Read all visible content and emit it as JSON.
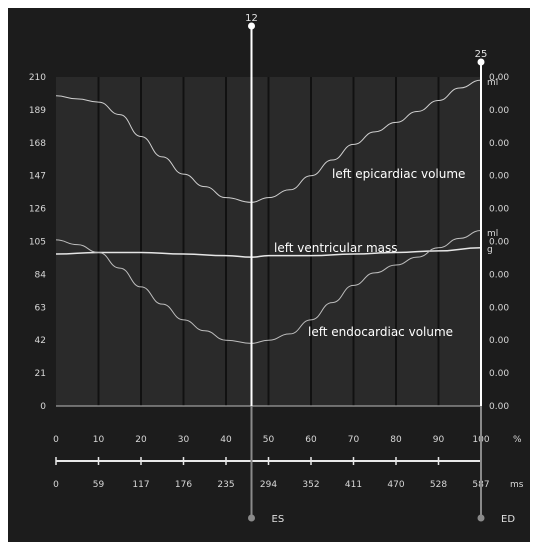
{
  "chart_data": {
    "type": "line",
    "left_axis": {
      "ticks": [
        0,
        21,
        42,
        63,
        84,
        105,
        126,
        147,
        168,
        189,
        210
      ],
      "range": [
        0,
        210
      ]
    },
    "right_axis": {
      "ticks": [
        "0.00",
        "0.00",
        "0.00",
        "0.00",
        "0.00",
        "0.00",
        "0.00",
        "0.00",
        "0.00",
        "0.00",
        "0.00"
      ]
    },
    "percent_axis": {
      "ticks": [
        0,
        10,
        20,
        30,
        40,
        50,
        60,
        70,
        80,
        90,
        100
      ],
      "unit": "%"
    },
    "ms_axis": {
      "ticks": [
        0,
        59,
        117,
        176,
        235,
        294,
        352,
        411,
        470,
        528,
        587
      ],
      "unit": "ms"
    },
    "right_units": {
      "top": "ml",
      "mid_ml": "ml",
      "mid_g": "g"
    },
    "markers": [
      {
        "name": "ES",
        "frame": "12",
        "percent": 46
      },
      {
        "name": "ED",
        "frame": "25",
        "percent": 100
      }
    ],
    "series": [
      {
        "name": "left epicardiac volume",
        "x": [
          0,
          5,
          10,
          15,
          20,
          25,
          30,
          35,
          40,
          46,
          50,
          55,
          60,
          65,
          70,
          75,
          80,
          85,
          90,
          95,
          100
        ],
        "y": [
          198,
          196,
          194,
          186,
          172,
          159,
          148,
          140,
          133,
          130,
          133,
          138,
          147,
          157,
          167,
          175,
          181,
          188,
          195,
          203,
          208
        ]
      },
      {
        "name": "left ventricular mass",
        "x": [
          0,
          10,
          20,
          30,
          40,
          46,
          50,
          60,
          70,
          80,
          90,
          100
        ],
        "y": [
          97,
          98,
          98,
          97,
          96,
          95,
          96,
          96,
          97,
          98,
          99,
          101
        ]
      },
      {
        "name": "left endocardiac volume",
        "x": [
          0,
          5,
          10,
          15,
          20,
          25,
          30,
          35,
          40,
          46,
          50,
          55,
          60,
          65,
          70,
          75,
          80,
          85,
          90,
          95,
          100
        ],
        "y": [
          106,
          103,
          98,
          88,
          76,
          65,
          55,
          48,
          42,
          40,
          42,
          46,
          55,
          66,
          77,
          85,
          90,
          95,
          101,
          107,
          112
        ]
      }
    ]
  }
}
